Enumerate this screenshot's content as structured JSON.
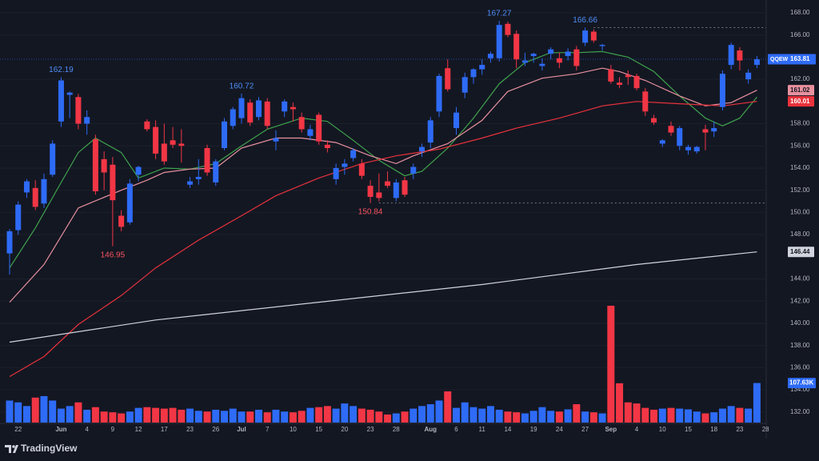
{
  "chart_data": {
    "type": "candlestick",
    "symbol": "QQEW",
    "brand": "TradingView",
    "up_color": "#2e6bf6",
    "down_color": "#f23645",
    "categories": [
      null,
      "22",
      null,
      null,
      null,
      null,
      "Jun",
      null,
      null,
      "4",
      null,
      null,
      "9",
      null,
      null,
      "12",
      null,
      null,
      "17",
      null,
      null,
      "23",
      null,
      null,
      "26",
      null,
      null,
      "Jul",
      null,
      null,
      "7",
      null,
      null,
      "10",
      null,
      null,
      "15",
      null,
      null,
      "20",
      null,
      null,
      "23",
      null,
      null,
      "28",
      null,
      null,
      null,
      "Aug",
      null,
      null,
      "6",
      null,
      null,
      "11",
      null,
      null,
      "14",
      null,
      null,
      "19",
      null,
      null,
      "24",
      null,
      null,
      "27",
      null,
      null,
      "Sep",
      null,
      null,
      "4",
      null,
      null,
      "10",
      null,
      null,
      "15",
      null,
      null,
      "18",
      null,
      null,
      "23",
      null,
      null,
      "28"
    ],
    "open": [
      146.3,
      148.4,
      151.8,
      152.2,
      150.8,
      153.4,
      158.2,
      160.6,
      160.4,
      158.0,
      156.6,
      154.8,
      154.3,
      149.7,
      149.1,
      153.4,
      158.2,
      157.7,
      156.2,
      156.5,
      156.2,
      152.5,
      153.0,
      155.8,
      152.7,
      155.8,
      157.8,
      158.5,
      159.9,
      158.6,
      160.0,
      156.4,
      159.1,
      159.5,
      158.6,
      156.9,
      158.8,
      156.1,
      153.0,
      154.1,
      154.9,
      154.4,
      152.4,
      151.8,
      152.8,
      151.3,
      152.9,
      153.5,
      155.5,
      156.3,
      159.1,
      163.0,
      157.6,
      160.8,
      162.2,
      162.9,
      163.9,
      163.9,
      167.0,
      166.1,
      163.5,
      164.1,
      163.2,
      164.3,
      163.9,
      164.1,
      164.7,
      165.3,
      166.3,
      165.0,
      162.9,
      161.7,
      162.4,
      162.3,
      160.9,
      158.5,
      156.2,
      157.8,
      156.0,
      155.6,
      155.5,
      157.5,
      157.3,
      159.5,
      163.3,
      164.6,
      162.0,
      163.3,
      null
    ],
    "high": [
      148.5,
      151.0,
      153.0,
      152.9,
      153.5,
      156.5,
      162.19,
      160.9,
      160.7,
      159.2,
      157.0,
      155.5,
      155.0,
      150.2,
      153.0,
      154.2,
      158.4,
      158.3,
      158.0,
      157.7,
      157.5,
      153.2,
      154.8,
      156.1,
      154.8,
      158.5,
      159.5,
      160.72,
      160.2,
      160.4,
      160.3,
      157.4,
      160.2,
      159.9,
      159.0,
      157.9,
      159.0,
      156.5,
      154.4,
      154.8,
      155.8,
      154.8,
      152.9,
      153.5,
      153.7,
      153.0,
      153.2,
      154.4,
      156.2,
      158.6,
      162.5,
      163.8,
      159.5,
      162.6,
      163.0,
      163.8,
      164.5,
      167.27,
      167.2,
      166.4,
      164.4,
      164.4,
      163.9,
      164.9,
      164.4,
      164.8,
      165.0,
      166.66,
      166.5,
      165.2,
      163.3,
      162.2,
      162.8,
      162.5,
      161.2,
      158.8,
      156.6,
      158.2,
      157.8,
      156.1,
      156.0,
      157.9,
      158.2,
      162.8,
      165.3,
      164.9,
      162.9,
      164.1,
      null
    ],
    "low": [
      144.4,
      148.0,
      151.3,
      150.2,
      150.4,
      153.2,
      157.7,
      158.5,
      157.5,
      157.0,
      151.6,
      152.0,
      146.95,
      148.3,
      148.9,
      152.8,
      157.3,
      154.8,
      154.3,
      155.8,
      154.5,
      152.2,
      152.5,
      153.3,
      152.4,
      155.6,
      157.5,
      158.0,
      157.8,
      158.3,
      157.5,
      155.6,
      158.6,
      158.2,
      157.2,
      156.5,
      156.1,
      155.4,
      152.5,
      153.4,
      154.6,
      153.0,
      150.84,
      151.0,
      152.2,
      151.0,
      151.4,
      153.0,
      155.0,
      155.8,
      158.6,
      160.9,
      157.0,
      160.3,
      161.6,
      162.4,
      163.5,
      163.6,
      165.8,
      163.0,
      163.2,
      163.5,
      162.8,
      163.8,
      163.0,
      163.7,
      162.8,
      165.0,
      165.3,
      164.6,
      161.6,
      161.2,
      161.5,
      161.0,
      158.7,
      157.9,
      155.9,
      156.9,
      155.6,
      155.2,
      155.3,
      155.6,
      156.8,
      159.2,
      162.9,
      162.8,
      161.6,
      163.0,
      null
    ],
    "close": [
      148.3,
      150.7,
      152.8,
      150.5,
      153.0,
      156.2,
      161.9,
      160.8,
      158.0,
      158.6,
      151.9,
      153.6,
      151.1,
      148.7,
      152.6,
      154.1,
      157.5,
      155.3,
      154.6,
      156.1,
      156.0,
      152.8,
      153.2,
      153.6,
      154.6,
      158.2,
      159.3,
      160.3,
      158.1,
      160.1,
      157.8,
      156.7,
      160.0,
      159.3,
      157.5,
      157.5,
      156.4,
      155.8,
      154.0,
      154.4,
      155.6,
      153.3,
      151.4,
      151.3,
      152.4,
      152.7,
      151.6,
      154.1,
      155.9,
      158.3,
      162.3,
      161.1,
      159.0,
      162.2,
      162.9,
      163.3,
      164.3,
      166.9,
      166.0,
      163.8,
      163.7,
      164.3,
      163.4,
      164.7,
      163.5,
      164.5,
      163.2,
      166.4,
      165.5,
      165.1,
      161.8,
      161.5,
      162.2,
      161.2,
      159.1,
      158.1,
      156.5,
      157.2,
      157.6,
      155.9,
      155.9,
      157.2,
      157.6,
      162.5,
      165.1,
      163.7,
      162.6,
      163.81,
      null
    ],
    "volume": [
      60,
      55,
      45,
      68,
      72,
      60,
      38,
      45,
      55,
      35,
      42,
      30,
      28,
      25,
      30,
      40,
      42,
      40,
      38,
      40,
      35,
      38,
      32,
      30,
      35,
      32,
      38,
      30,
      30,
      35,
      28,
      35,
      30,
      28,
      32,
      40,
      42,
      45,
      38,
      52,
      45,
      38,
      35,
      30,
      22,
      25,
      30,
      38,
      45,
      50,
      60,
      85,
      40,
      55,
      42,
      38,
      45,
      35,
      30,
      28,
      25,
      32,
      42,
      32,
      30,
      36,
      50,
      30,
      28,
      25,
      318,
      107,
      55,
      52,
      40,
      35,
      38,
      40,
      38,
      36,
      30,
      25,
      28,
      38,
      45,
      40,
      38,
      107.63,
      null
    ],
    "volume_label": "107.63K",
    "volume_lim": [
      0,
      1150
    ],
    "xlim": [
      -1.117,
      88.08
    ],
    "ylim": [
      131.05,
      169.15
    ],
    "yticks": [
      {
        "value": 168,
        "label": "168.00"
      },
      {
        "value": 166,
        "label": "166.00"
      },
      {
        "value": 162,
        "label": "162.00"
      },
      {
        "value": 158,
        "label": "158.00"
      },
      {
        "value": 156,
        "label": "156.00"
      },
      {
        "value": 154,
        "label": "154.00"
      },
      {
        "value": 152,
        "label": "152.00"
      },
      {
        "value": 150,
        "label": "150.00"
      },
      {
        "value": 148,
        "label": "148.00"
      },
      {
        "value": 144,
        "label": "144.00"
      },
      {
        "value": 142,
        "label": "142.00"
      },
      {
        "value": 140,
        "label": "140.00"
      },
      {
        "value": 138,
        "label": "138.00"
      },
      {
        "value": 136,
        "label": "136.00"
      },
      {
        "value": 134,
        "label": "134.00"
      },
      {
        "value": 132,
        "label": "132.00"
      }
    ],
    "grid": true,
    "moving_averages": [
      {
        "color": "#3fa34d",
        "label": false,
        "x": [
          0,
          3,
          6,
          8,
          10,
          13,
          15,
          18,
          21,
          24,
          27,
          30,
          34,
          37,
          40,
          43,
          46,
          48,
          51,
          54,
          57,
          60,
          63,
          66,
          69,
          72,
          75,
          78,
          81,
          83,
          85,
          87
        ],
        "values": [
          145.0,
          148.6,
          152.7,
          155.4,
          156.7,
          155.4,
          153.1,
          154.0,
          153.9,
          154.4,
          156.0,
          157.5,
          158.5,
          158.2,
          156.5,
          154.7,
          153.3,
          153.7,
          155.8,
          158.5,
          161.6,
          163.5,
          164.4,
          164.4,
          164.5,
          164.0,
          162.7,
          160.5,
          158.5,
          157.8,
          158.5,
          160.4
        ]
      },
      {
        "color": "#e8919f",
        "label": true,
        "x": [
          0,
          4,
          8,
          13,
          16,
          18,
          21,
          24,
          27,
          31,
          34,
          38,
          42,
          45,
          47,
          51,
          55,
          58,
          62,
          66,
          69,
          71,
          74,
          78,
          81,
          84,
          87
        ],
        "values": [
          141.9,
          145.3,
          150.4,
          152.0,
          152.9,
          153.6,
          153.9,
          154.0,
          155.8,
          156.7,
          156.7,
          156.3,
          155.1,
          154.4,
          155.1,
          156.2,
          158.3,
          160.9,
          162.1,
          162.5,
          163.0,
          162.7,
          161.9,
          160.5,
          159.6,
          159.9,
          161.02
        ]
      },
      {
        "color": "#e8323c",
        "label": true,
        "x": [
          0,
          4,
          8,
          13,
          17,
          22,
          27,
          31,
          36,
          41,
          45,
          50,
          55,
          59,
          64,
          69,
          73,
          78,
          83,
          87
        ],
        "values": [
          135.2,
          137.0,
          139.9,
          142.5,
          145.0,
          147.5,
          149.7,
          151.5,
          153.1,
          154.4,
          155.1,
          155.7,
          156.7,
          157.6,
          158.5,
          159.6,
          160.0,
          159.8,
          159.6,
          160.01
        ]
      },
      {
        "color": "#d1d4dc",
        "label": true,
        "x": [
          0,
          17,
          36,
          55,
          73,
          87
        ],
        "values": [
          138.3,
          140.3,
          141.9,
          143.5,
          145.3,
          146.44
        ]
      }
    ],
    "annotations": [
      {
        "value": 162.19,
        "index": 6,
        "color": "#4f8ef7",
        "position": "above",
        "dashed": false
      },
      {
        "value": 146.95,
        "index": 12,
        "color": "#f7525f",
        "position": "below",
        "dashed": false
      },
      {
        "value": 160.72,
        "index": 27,
        "color": "#4f8ef7",
        "position": "above",
        "dashed": false
      },
      {
        "value": 150.84,
        "index": 42,
        "color": "#f7525f",
        "position": "below",
        "dashed": true
      },
      {
        "value": 167.27,
        "index": 57,
        "color": "#4f8ef7",
        "position": "above",
        "dashed": false
      },
      {
        "value": 166.66,
        "index": 67,
        "color": "#4f8ef7",
        "position": "above",
        "dashed": true
      }
    ]
  }
}
